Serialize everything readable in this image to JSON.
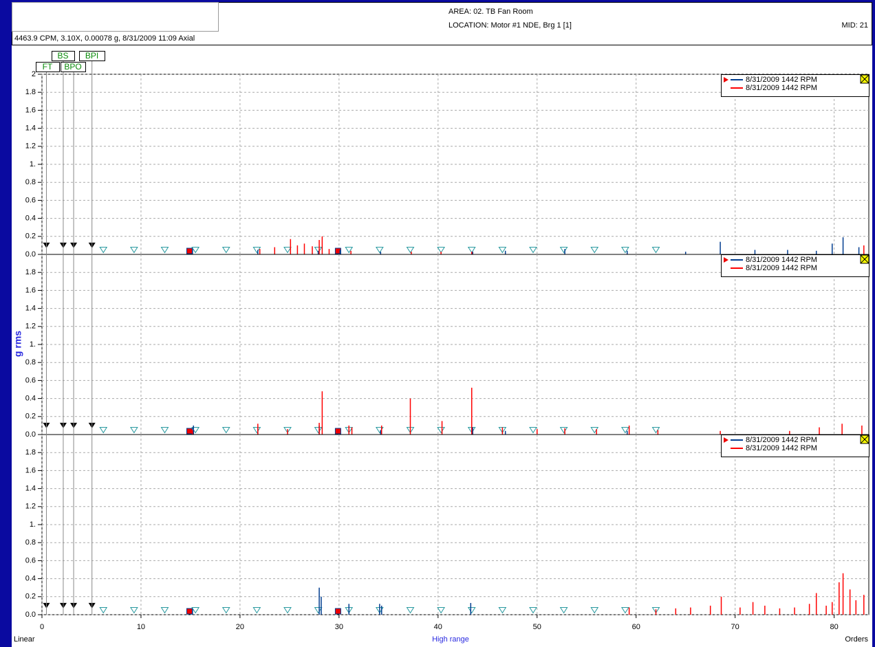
{
  "header": {
    "area": "AREA: 02. TB Fan Room",
    "location": "LOCATION: Motor #1 NDE, Brg 1 [1]",
    "mid": "MID: 21",
    "cursor": "4463.9 CPM, 3.10X, 0.00078 g, 8/31/2009 11:09  Axial"
  },
  "y_axis_label": "g rms",
  "footer": {
    "scale": "Linear",
    "range": "High range",
    "units": "Orders"
  },
  "fault_markers": [
    {
      "label": "FT",
      "x": 0.45
    },
    {
      "label": "BS",
      "x": 2.15
    },
    {
      "label": "BPO",
      "x": 3.2
    },
    {
      "label": "BPI",
      "x": 5.05
    }
  ],
  "harmonic_markers": [
    6.2,
    9.3,
    12.4,
    15.5,
    18.6,
    21.7,
    24.8,
    27.9,
    31.0,
    34.1,
    37.2,
    40.3,
    43.4,
    46.5,
    49.6,
    52.7,
    55.8,
    58.9,
    62.0
  ],
  "speed_markers": [
    14.9,
    29.9
  ],
  "chart_data": [
    {
      "type": "spectrum",
      "xlim": [
        0,
        83.5
      ],
      "xticks": [
        0,
        10,
        20,
        30,
        40,
        50,
        60,
        70,
        80
      ],
      "ylim": [
        0,
        2
      ],
      "yticks": [
        {
          "value": 0,
          "label": "0.0"
        },
        0.2,
        0.4,
        0.6,
        0.8,
        {
          "value": 1,
          "label": "1."
        },
        1.2,
        1.4,
        1.6,
        1.8,
        2
      ],
      "grid": true,
      "series": [
        {
          "name": "8/31/2009 1442 RPM",
          "color": "#003c8f",
          "x": [
            15.2,
            21.8,
            27.9,
            30.1,
            34.2,
            43.5,
            46.8,
            52.8,
            59.1,
            65.0,
            68.5,
            72.0,
            75.3,
            78.2,
            79.8,
            80.9,
            82.5
          ],
          "values": [
            0.06,
            0.05,
            0.04,
            0.05,
            0.03,
            0.03,
            0.04,
            0.06,
            0.04,
            0.03,
            0.14,
            0.05,
            0.05,
            0.04,
            0.12,
            0.19,
            0.08
          ]
        },
        {
          "name": "8/31/2009 1442 RPM",
          "color": "#ff0000",
          "x": [
            22.0,
            23.5,
            25.1,
            25.8,
            26.5,
            27.3,
            28.0,
            28.3,
            29.0,
            31.2,
            37.3,
            40.3,
            43.4,
            83.0
          ],
          "values": [
            0.06,
            0.08,
            0.17,
            0.1,
            0.12,
            0.09,
            0.16,
            0.2,
            0.06,
            0.04,
            0.03,
            0.03,
            0.03,
            0.1
          ]
        }
      ]
    },
    {
      "type": "spectrum",
      "xlim": [
        0,
        83.5
      ],
      "xticks": [
        0,
        10,
        20,
        30,
        40,
        50,
        60,
        70,
        80
      ],
      "ylim": [
        0,
        2
      ],
      "yticks": [
        {
          "value": 0,
          "label": "0.0"
        },
        0.2,
        0.4,
        0.6,
        0.8,
        {
          "value": 1,
          "label": "1."
        },
        1.2,
        1.4,
        1.6,
        1.8
      ],
      "grid": true,
      "series": [
        {
          "name": "8/31/2009 1442 RPM",
          "color": "#003c8f",
          "x": [
            15.3,
            21.8,
            28.0,
            34.2,
            43.5,
            46.8,
            59.1
          ],
          "values": [
            0.1,
            0.08,
            0.1,
            0.05,
            0.08,
            0.04,
            0.04
          ]
        },
        {
          "name": "8/31/2009 1442 RPM",
          "color": "#ff0000",
          "x": [
            15.2,
            21.8,
            24.8,
            28.0,
            28.3,
            31.0,
            31.3,
            34.3,
            37.2,
            40.4,
            43.4,
            46.5,
            50.0,
            52.8,
            56.0,
            59.3,
            62.2,
            68.5,
            75.5,
            78.5,
            80.8,
            82.8
          ],
          "values": [
            0.05,
            0.12,
            0.06,
            0.13,
            0.48,
            0.1,
            0.08,
            0.1,
            0.4,
            0.15,
            0.52,
            0.08,
            0.06,
            0.07,
            0.06,
            0.1,
            0.05,
            0.04,
            0.04,
            0.08,
            0.12,
            0.1
          ]
        }
      ]
    },
    {
      "type": "spectrum",
      "xlim": [
        0,
        83.5
      ],
      "xticks": [
        0,
        10,
        20,
        30,
        40,
        50,
        60,
        70,
        80
      ],
      "ylim": [
        0,
        2
      ],
      "yticks": [
        {
          "value": 0,
          "label": "0.0"
        },
        0.2,
        0.4,
        0.6,
        0.8,
        {
          "value": 1,
          "label": "1."
        },
        1.2,
        1.4,
        1.6,
        1.8
      ],
      "grid": true,
      "series": [
        {
          "name": "8/31/2009 1442 RPM",
          "color": "#003c8f",
          "x": [
            15.2,
            28.0,
            28.2,
            31.0,
            34.1,
            34.3,
            43.3
          ],
          "values": [
            0.06,
            0.3,
            0.2,
            0.12,
            0.12,
            0.1,
            0.13
          ]
        },
        {
          "name": "8/31/2009 1442 RPM",
          "color": "#ff0000",
          "x": [
            59.3,
            62.0,
            64.0,
            65.5,
            67.5,
            68.6,
            70.5,
            71.8,
            73.0,
            74.5,
            76.0,
            77.5,
            78.2,
            79.2,
            79.8,
            80.5,
            80.9,
            81.6,
            82.2,
            83.0
          ],
          "values": [
            0.08,
            0.06,
            0.07,
            0.08,
            0.1,
            0.2,
            0.08,
            0.14,
            0.1,
            0.07,
            0.08,
            0.12,
            0.24,
            0.1,
            0.14,
            0.36,
            0.46,
            0.28,
            0.16,
            0.22
          ]
        }
      ]
    }
  ]
}
